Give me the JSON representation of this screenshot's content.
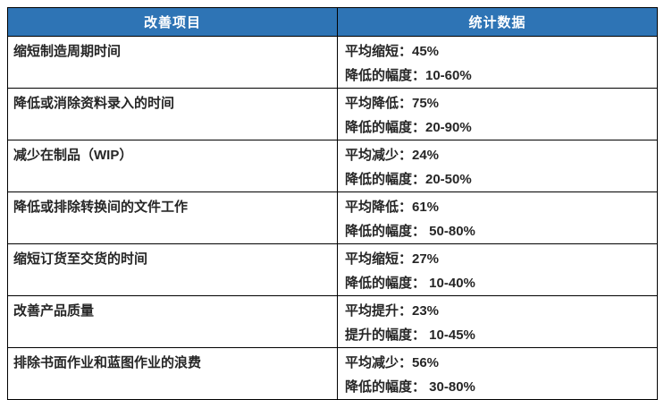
{
  "accent_color": "#2E74B5",
  "border_color": "#000000",
  "header_text_color": "#ffffff",
  "body_text_color": "#262626",
  "table": {
    "headers": [
      "改善项目",
      "统计数据"
    ],
    "rows": [
      {
        "item": "缩短制造周期时间",
        "line1": "平均缩短：45%",
        "line2": "降低的幅度：10-60%"
      },
      {
        "item": "降低或消除资料录入的时间",
        "line1": "平均降低：75%",
        "line2": "降低的幅度：20-90%"
      },
      {
        "item": "减少在制品（WIP）",
        "line1": "平均减少：24%",
        "line2": "降低的幅度：20-50%"
      },
      {
        "item": "降低或排除转换间的文件工作",
        "line1": "平均降低：61%",
        "line2": "降低的幅度： 50-80%"
      },
      {
        "item": "缩短订货至交货的时间",
        "line1": "平均缩短：27%",
        "line2": "降低的幅度： 10-40%"
      },
      {
        "item": "改善产品质量",
        "line1": "平均提升：23%",
        "line2": "提升的幅度： 10-45%"
      },
      {
        "item": "排除书面作业和蓝图作业的浪费",
        "line1": "平均减少：56%",
        "line2": "降低的幅度： 30-80%"
      }
    ]
  }
}
